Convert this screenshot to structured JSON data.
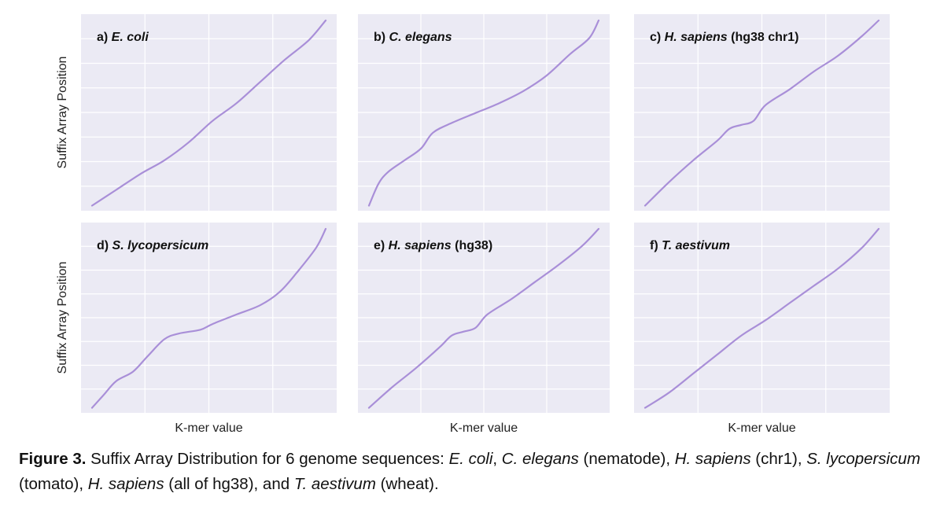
{
  "chart_data": [
    {
      "type": "line",
      "panel_label": "a)",
      "species": "E. coli",
      "suffix": "",
      "xlabel": "",
      "ylabel": "Suffix Array Position",
      "xlim": [
        0,
        1
      ],
      "ylim": [
        0,
        1
      ],
      "grid": true,
      "series": [
        {
          "color": "#a98fd8",
          "x": [
            0,
            0.1,
            0.2,
            0.3,
            0.4,
            0.5,
            0.6,
            0.7,
            0.8,
            0.9,
            0.97
          ],
          "y": [
            0.01,
            0.09,
            0.17,
            0.24,
            0.33,
            0.44,
            0.53,
            0.64,
            0.75,
            0.85,
            0.95
          ]
        }
      ]
    },
    {
      "type": "line",
      "panel_label": "b)",
      "species": "C. elegans",
      "suffix": "",
      "xlabel": "",
      "ylabel": "",
      "xlim": [
        0,
        1
      ],
      "ylim": [
        0,
        1
      ],
      "grid": true,
      "series": [
        {
          "color": "#a98fd8",
          "x": [
            0,
            0.04,
            0.08,
            0.15,
            0.22,
            0.27,
            0.35,
            0.45,
            0.55,
            0.65,
            0.75,
            0.85,
            0.93,
            0.97
          ],
          "y": [
            0.01,
            0.12,
            0.18,
            0.24,
            0.3,
            0.38,
            0.43,
            0.48,
            0.53,
            0.59,
            0.67,
            0.78,
            0.86,
            0.95
          ]
        }
      ]
    },
    {
      "type": "line",
      "panel_label": "c)",
      "species": "H. sapiens",
      "suffix": "(hg38 chr1)",
      "xlabel": "",
      "ylabel": "",
      "xlim": [
        0,
        1
      ],
      "ylim": [
        0,
        1
      ],
      "grid": true,
      "series": [
        {
          "color": "#a98fd8",
          "x": [
            0,
            0.1,
            0.2,
            0.3,
            0.35,
            0.4,
            0.45,
            0.5,
            0.6,
            0.7,
            0.8,
            0.9,
            0.97
          ],
          "y": [
            0.01,
            0.13,
            0.24,
            0.34,
            0.4,
            0.42,
            0.44,
            0.52,
            0.6,
            0.69,
            0.77,
            0.87,
            0.95
          ]
        }
      ]
    },
    {
      "type": "line",
      "panel_label": "d)",
      "species": "S. lycopersicum",
      "suffix": "",
      "xlabel": "K-mer value",
      "ylabel": "Suffix Array Position",
      "xlim": [
        0,
        1
      ],
      "ylim": [
        0,
        1
      ],
      "grid": true,
      "series": [
        {
          "color": "#a98fd8",
          "x": [
            0,
            0.05,
            0.1,
            0.17,
            0.23,
            0.3,
            0.36,
            0.45,
            0.5,
            0.6,
            0.7,
            0.78,
            0.85,
            0.93,
            0.97
          ],
          "y": [
            0.01,
            0.08,
            0.15,
            0.2,
            0.28,
            0.37,
            0.4,
            0.42,
            0.45,
            0.5,
            0.55,
            0.62,
            0.72,
            0.85,
            0.95
          ]
        }
      ]
    },
    {
      "type": "line",
      "panel_label": "e)",
      "species": "H. sapiens",
      "suffix": "(hg38)",
      "xlabel": "K-mer value",
      "ylabel": "",
      "xlim": [
        0,
        1
      ],
      "ylim": [
        0,
        1
      ],
      "grid": true,
      "series": [
        {
          "color": "#a98fd8",
          "x": [
            0,
            0.1,
            0.2,
            0.3,
            0.35,
            0.4,
            0.45,
            0.5,
            0.6,
            0.7,
            0.8,
            0.9,
            0.97
          ],
          "y": [
            0.01,
            0.12,
            0.22,
            0.33,
            0.39,
            0.41,
            0.43,
            0.5,
            0.58,
            0.67,
            0.76,
            0.86,
            0.95
          ]
        }
      ]
    },
    {
      "type": "line",
      "panel_label": "f)",
      "species": "T. aestivum",
      "suffix": "",
      "xlabel": "K-mer value",
      "ylabel": "",
      "xlim": [
        0,
        1
      ],
      "ylim": [
        0,
        1
      ],
      "grid": true,
      "series": [
        {
          "color": "#a98fd8",
          "x": [
            0,
            0.1,
            0.2,
            0.3,
            0.4,
            0.5,
            0.6,
            0.7,
            0.8,
            0.9,
            0.97
          ],
          "y": [
            0.01,
            0.09,
            0.19,
            0.29,
            0.39,
            0.47,
            0.56,
            0.65,
            0.74,
            0.85,
            0.95
          ]
        }
      ]
    }
  ],
  "caption": {
    "lead": "Figure 3.",
    "p1": " Suffix Array Distribution for 6 genome sequences: ",
    "s1": "E. coli",
    "p2": ", ",
    "s2": "C. elegans",
    "p3": " (nematode), ",
    "s3": "H. sapiens",
    "p4": " (chr1), ",
    "s4": "S. lycopersicum",
    "p5": " (tomato), ",
    "s5": "H. sapiens",
    "p6": " (all of hg38), and ",
    "s6": "T. aestivum",
    "p7": " (wheat)."
  },
  "colors": {
    "panel_bg": "#ebeaf4",
    "grid": "#ffffff",
    "line": "#a98fd8"
  }
}
